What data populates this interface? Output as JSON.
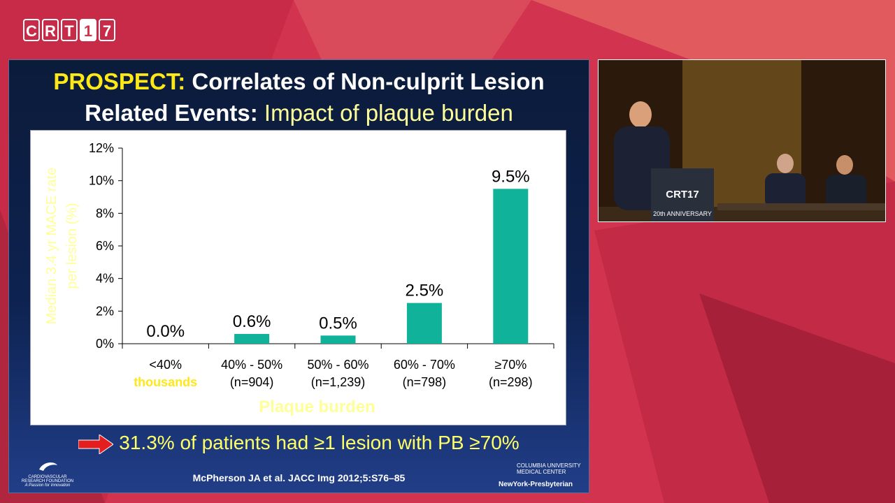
{
  "logo": {
    "letters": [
      "C",
      "R",
      "T",
      "1",
      "7"
    ]
  },
  "slide": {
    "title_part1": "PROSPECT:",
    "title_part2": " Correlates of Non-culprit Lesion",
    "title_part3": "Related Events:",
    "title_part4": " Impact of plaque burden",
    "bottom_statement": "31.3% of patients had ≥1 lesion with PB ≥70%",
    "citation": "McPherson JA et al. JACC Img 2012;5:S76–85",
    "crf_logo_text": "CARDIOVASCULAR RESEARCH FOUNDATION",
    "crf_tagline": "A Passion for Innovation",
    "columbia_text": "COLUMBIA UNIVERSITY MEDICAL CENTER",
    "nyp_text": "NewYork-Presbyterian"
  },
  "video": {
    "podium_text": "CRT17",
    "anniversary_text": "20th ANNIVERSARY"
  },
  "colors": {
    "bar": "#10b39a",
    "title_accent": "#ffe817",
    "axis_label": "#ffff99"
  },
  "chart_data": {
    "type": "bar",
    "categories": [
      "<40%",
      "40% - 50%",
      "50% - 60%",
      "60% - 70%",
      "≥70%"
    ],
    "category_sublabels": [
      "thousands",
      "(n=904)",
      "(n=1,239)",
      "(n=798)",
      "(n=298)"
    ],
    "values": [
      0.0,
      0.6,
      0.5,
      2.5,
      9.5
    ],
    "data_labels": [
      "0.0%",
      "0.6%",
      "0.5%",
      "2.5%",
      "9.5%"
    ],
    "ylabel_line1": "Median 3.4 yr MACE rate",
    "ylabel_line2": "per lesion (%)",
    "xlabel": "Plaque burden",
    "ylim": [
      0,
      12
    ],
    "yticks": [
      0,
      2,
      4,
      6,
      8,
      10,
      12
    ],
    "ytick_labels": [
      "0%",
      "2%",
      "4%",
      "6%",
      "8%",
      "10%",
      "12%"
    ]
  }
}
